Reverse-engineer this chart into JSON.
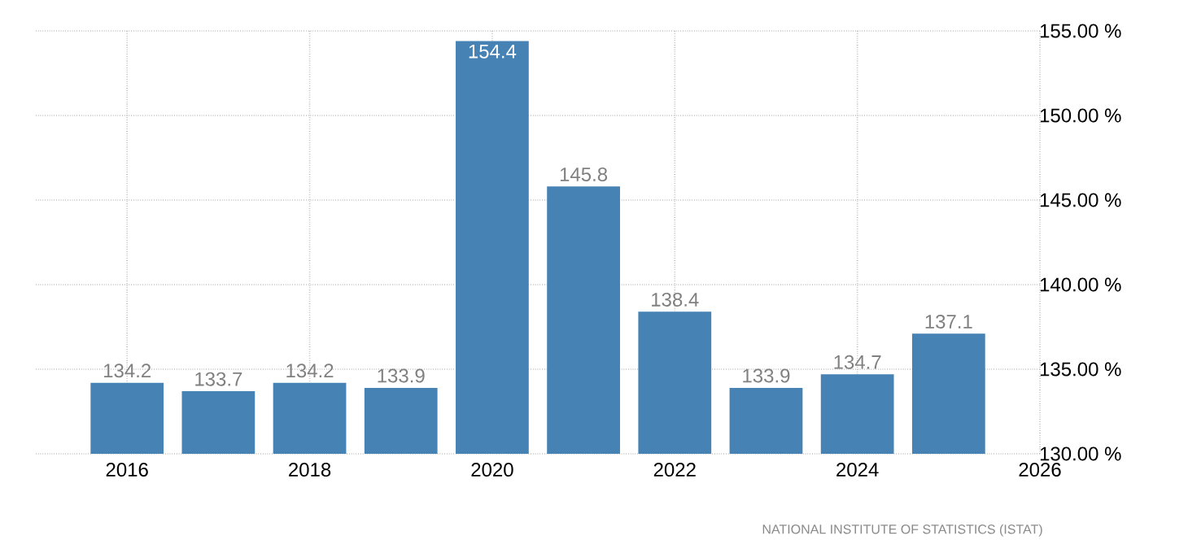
{
  "chart_data": {
    "type": "bar",
    "x": [
      2016,
      2017,
      2018,
      2019,
      2020,
      2021,
      2022,
      2023,
      2024,
      2025
    ],
    "values": [
      134.2,
      133.7,
      134.2,
      133.9,
      154.4,
      145.8,
      138.4,
      133.9,
      134.7,
      137.1
    ],
    "color": "#4682b4",
    "data_labels": true,
    "xlim": [
      2015,
      2026
    ],
    "xticks": [
      2016,
      2018,
      2020,
      2022,
      2024,
      2026
    ],
    "ylim": [
      130,
      155
    ],
    "yticks": [
      {
        "value": 130,
        "label": "130.00 %"
      },
      {
        "value": 135,
        "label": "135.00 %"
      },
      {
        "value": 140,
        "label": "140.00 %"
      },
      {
        "value": 145,
        "label": "145.00 %"
      },
      {
        "value": 150,
        "label": "150.00 %"
      },
      {
        "value": 155,
        "label": "155.00 %"
      }
    ],
    "grid": true,
    "annotations": [
      "NATIONAL INSTITUTE OF STATISTICS (ISTAT)"
    ]
  }
}
